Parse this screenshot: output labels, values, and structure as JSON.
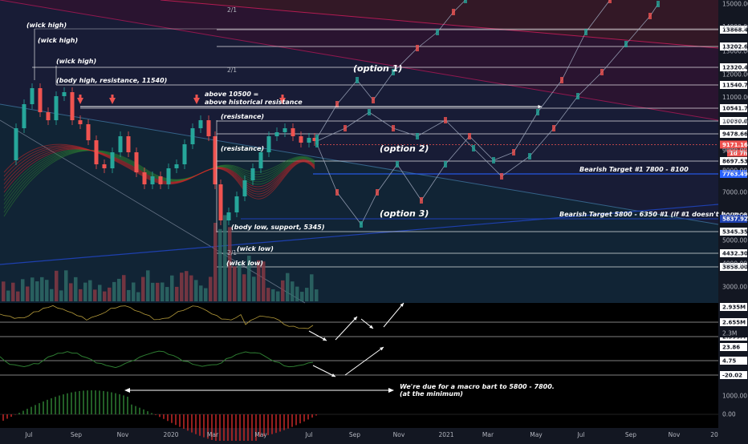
{
  "chart_data": {
    "type": "candlestick",
    "title": "",
    "price_axis_labels": [
      "15000.00",
      "14000.00",
      "13000.00",
      "12000.00",
      "11000.00",
      "10000.00",
      "9000.00",
      "8000.00",
      "7000.00",
      "6000.00",
      "5000.00",
      "4000.00",
      "3000.00"
    ],
    "time_axis_labels": [
      "Jul",
      "Sep",
      "Nov",
      "2020",
      "Mar",
      "May",
      "Jul",
      "Sep",
      "Nov",
      "2021",
      "Mar",
      "May",
      "Jul",
      "Sep",
      "Nov",
      "20"
    ],
    "horizontal_levels": [
      {
        "price": 13868.44,
        "label": "13868.44",
        "color": "#ffffff"
      },
      {
        "price": 13202.63,
        "label": "13202.63",
        "color": "#ffffff"
      },
      {
        "price": 12320.4,
        "label": "12320.40",
        "color": "#ffffff"
      },
      {
        "price": 11540.76,
        "label": "11540.76",
        "color": "#ffffff"
      },
      {
        "price": 10541.75,
        "label": "10541.75",
        "color": "#ffffff"
      },
      {
        "price": 10030.0,
        "label": "10030.00",
        "color": "#ffffff"
      },
      {
        "price": 9478.66,
        "label": "9478.66",
        "color": "#ffffff"
      },
      {
        "price": 8697.53,
        "label": "8697.53",
        "color": "#ffffff"
      },
      {
        "price": 7763.49,
        "label": "7763.49",
        "color": "#2962ff"
      },
      {
        "price": 5837.92,
        "label": "5837.92",
        "color": "#1e40af"
      },
      {
        "price": 5345.35,
        "label": "5345.35",
        "color": "#ffffff"
      },
      {
        "price": 4432.3,
        "label": "4432.30",
        "color": "#ffffff"
      },
      {
        "price": 3858.0,
        "label": "3858.00",
        "color": "#ffffff"
      }
    ],
    "current_price": {
      "price": 9171.16,
      "label": "9171.16",
      "countdown": "1d 7h",
      "color": "#ef5350"
    },
    "oscillator_1": {
      "labels": [
        "2.935M",
        "2.655M",
        "2.395M",
        "2.3M"
      ]
    },
    "oscillator_2": {
      "labels": [
        "23.86",
        "4.75",
        "-20.02"
      ]
    },
    "histogram": {
      "labels": [
        "1000.00",
        "0.00"
      ]
    },
    "annotations": {
      "wick_high_1": "(wick high)",
      "wick_high_2": "(wick high)",
      "wick_high_3": "(wick high)",
      "body_high": "(body high, resistance, 11540)",
      "above_10500_line1": "above 10500 =",
      "above_10500_line2": "above historical resistance",
      "resistance_1": "(resistance)",
      "resistance_2": "(resistance)",
      "option_1": "(option 1)",
      "option_2": "(option 2)",
      "option_3": "(option 3)",
      "bearish_target_1": "Bearish Target #1 7800 - 8100",
      "bearish_target_2": "Bearish Target 5800 - 6350 #1 (if #1 doesn't bounce)",
      "body_low": "(body low, support, 5345)",
      "wick_low_1": "(wick low)",
      "wick_low_2": "(wick low)",
      "fib_label_1": "2/1",
      "fib_label_2": "2/1",
      "fib_label_3": "2/1",
      "macro_note_line1": "We're due for a macro bart to 5800 - 7800.",
      "macro_note_line2": "(at the minimum)"
    }
  }
}
